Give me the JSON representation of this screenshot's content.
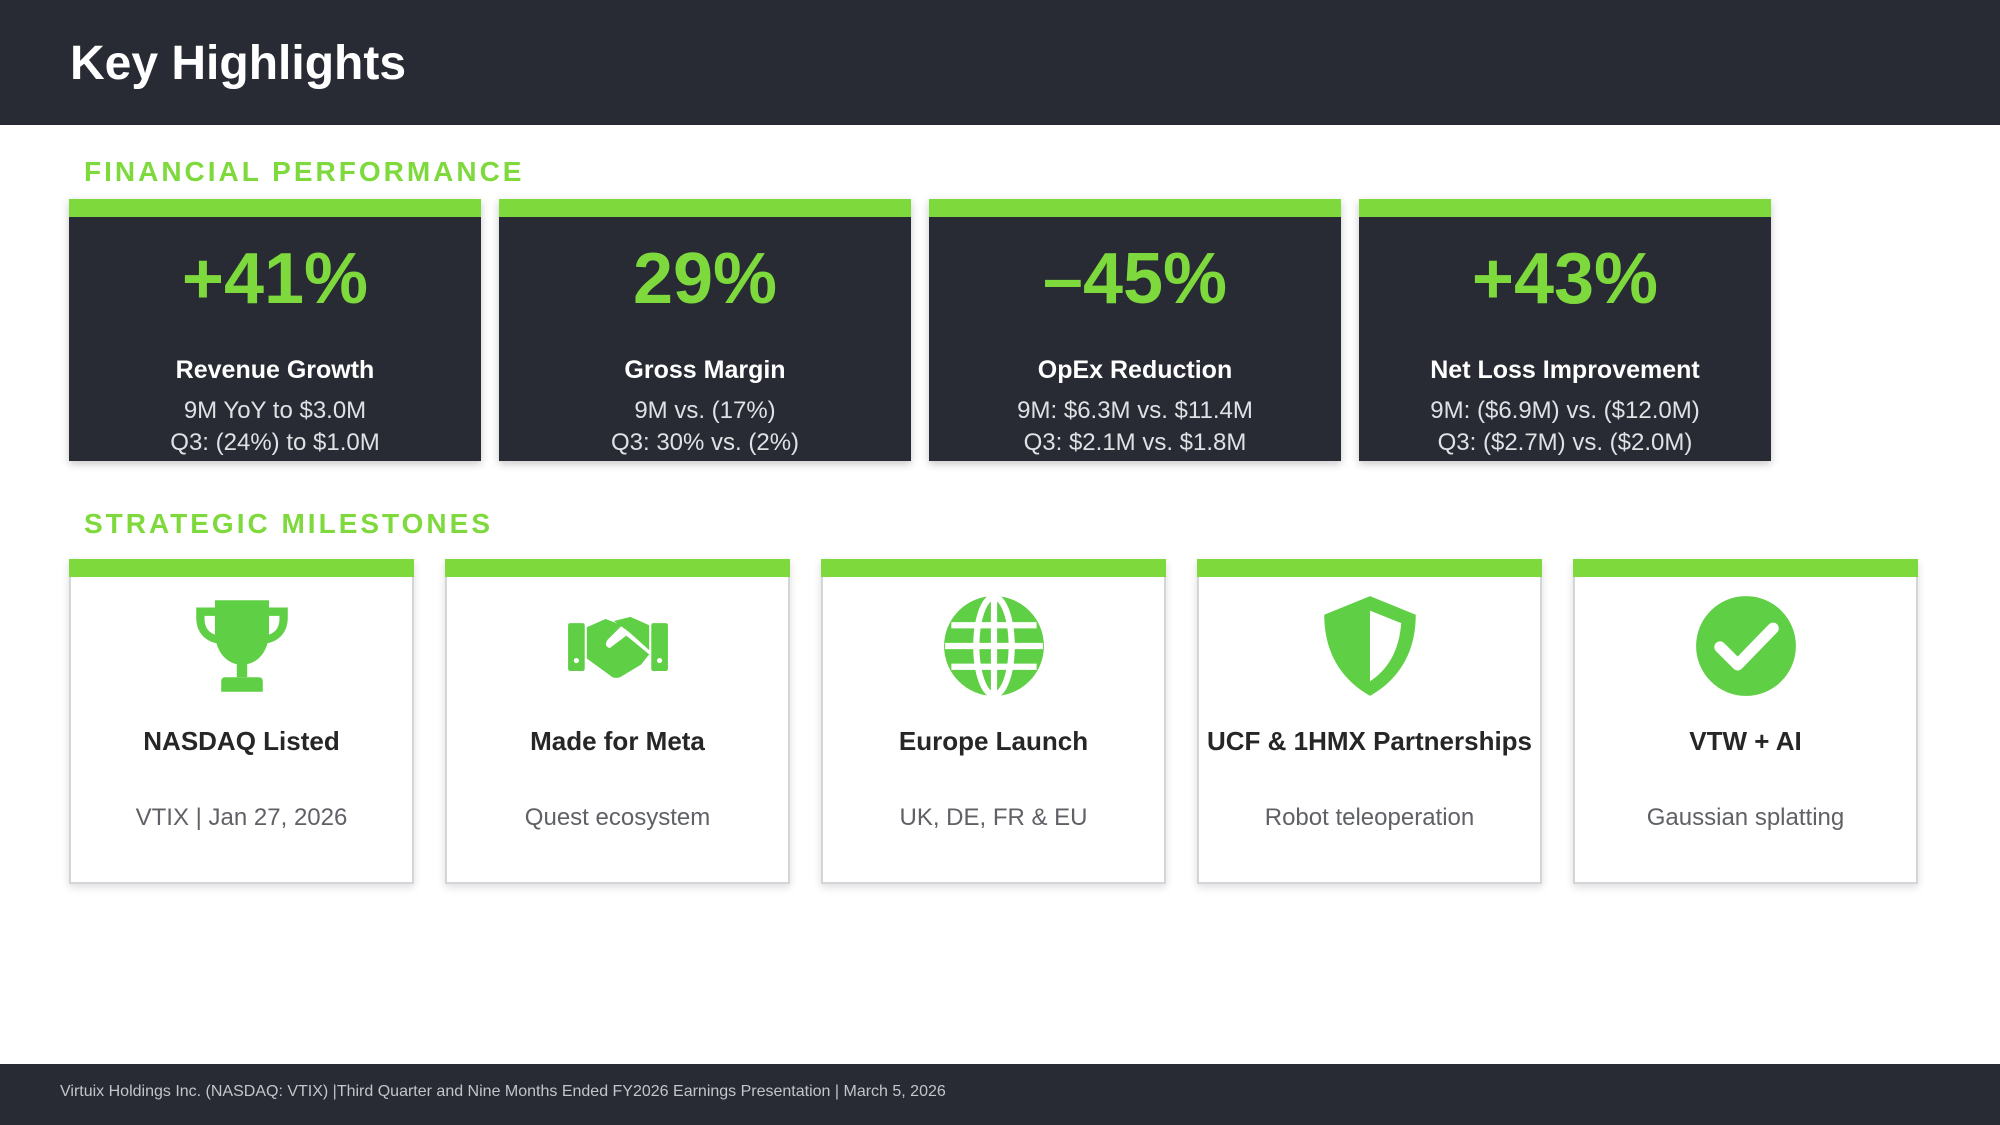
{
  "header": {
    "title": "Key Highlights"
  },
  "colors": {
    "accent": "#7ed93c",
    "dark": "#282b34"
  },
  "financial": {
    "section_title": "FINANCIAL PERFORMANCE",
    "cards": [
      {
        "stat": "+41%",
        "label": "Revenue Growth",
        "line1": "9M YoY to $3.0M",
        "line2": "Q3: (24%) to $1.0M"
      },
      {
        "stat": "29%",
        "label": "Gross Margin",
        "line1": "9M vs. (17%)",
        "line2": "Q3: 30% vs. (2%)"
      },
      {
        "stat": "–45%",
        "label": "OpEx Reduction",
        "line1": "9M: $6.3M vs. $11.4M",
        "line2": "Q3: $2.1M vs. $1.8M"
      },
      {
        "stat": "+43%",
        "label": "Net Loss Improvement",
        "line1": "9M: ($6.9M) vs. ($12.0M)",
        "line2": "Q3: ($2.7M) vs. ($2.0M)"
      }
    ]
  },
  "milestones": {
    "section_title": "STRATEGIC MILESTONES",
    "cards": [
      {
        "icon": "trophy-icon",
        "label": "NASDAQ Listed",
        "detail": "VTIX | Jan 27, 2026"
      },
      {
        "icon": "handshake-icon",
        "label": "Made for Meta",
        "detail": "Quest ecosystem"
      },
      {
        "icon": "globe-icon",
        "label": "Europe Launch",
        "detail": "UK, DE, FR & EU"
      },
      {
        "icon": "shield-icon",
        "label": "UCF & 1HMX Partnerships",
        "detail": "Robot teleoperation"
      },
      {
        "icon": "checkmark-circle-icon",
        "label": "VTW + AI",
        "detail": "Gaussian splatting"
      }
    ]
  },
  "footer": {
    "text": "Virtuix Holdings Inc. (NASDAQ: VTIX) |Third Quarter and  Nine Months Ended FY2026 Earnings Presentation | March 5, 2026"
  }
}
